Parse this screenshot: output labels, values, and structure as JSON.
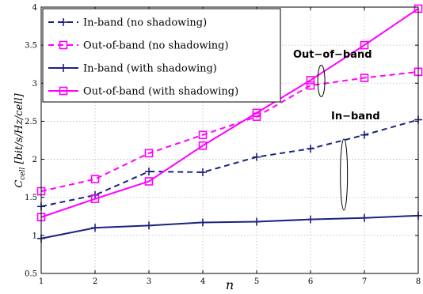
{
  "chart_data": {
    "type": "line",
    "x": [
      1,
      2,
      3,
      4,
      5,
      6,
      7,
      8
    ],
    "xlim": [
      1,
      8
    ],
    "ylim": [
      0.5,
      4
    ],
    "xticks": [
      "1",
      "2",
      "3",
      "4",
      "5",
      "6",
      "7",
      "8"
    ],
    "yticks": [
      "0.5",
      "1",
      "1.5",
      "2",
      "2.5",
      "3",
      "3.5",
      "4"
    ],
    "ytick_values": [
      0.5,
      1,
      1.5,
      2,
      2.5,
      3,
      3.5,
      4
    ],
    "xlabel": "n",
    "ylabel": "C_cell [bit/s/Hz/cell]",
    "ylabel_main": "C",
    "ylabel_sub": "cell",
    "ylabel_unit": " [bit/s/Hz/cell]",
    "grid": true,
    "legend_position": "top-left",
    "series": [
      {
        "name": "In-band (no shadowing)",
        "values": [
          1.38,
          1.53,
          1.84,
          1.83,
          2.03,
          2.14,
          2.32,
          2.52
        ],
        "color": "#1a237e",
        "dashed": true,
        "marker": "plus"
      },
      {
        "name": "Out-of-band (no shadowing)",
        "values": [
          1.58,
          1.74,
          2.08,
          2.32,
          2.56,
          2.97,
          3.07,
          3.15
        ],
        "color": "#ff00ff",
        "dashed": true,
        "marker": "square"
      },
      {
        "name": "In-band (with shadowing)",
        "values": [
          0.96,
          1.1,
          1.13,
          1.17,
          1.18,
          1.21,
          1.23,
          1.26
        ],
        "color": "#1a237e",
        "dashed": false,
        "marker": "plus"
      },
      {
        "name": "Out-of-band (with shadowing)",
        "values": [
          1.24,
          1.48,
          1.71,
          2.18,
          2.61,
          3.04,
          3.5,
          3.98
        ],
        "color": "#ff00ff",
        "dashed": false,
        "marker": "square"
      }
    ],
    "annotations": [
      {
        "text": "Out−of−band",
        "ellipse_x": 6.2,
        "ellipse_y": 3.03
      },
      {
        "text": "In−band",
        "ellipse_x": 6.62,
        "ellipse_y": 1.8
      }
    ]
  }
}
